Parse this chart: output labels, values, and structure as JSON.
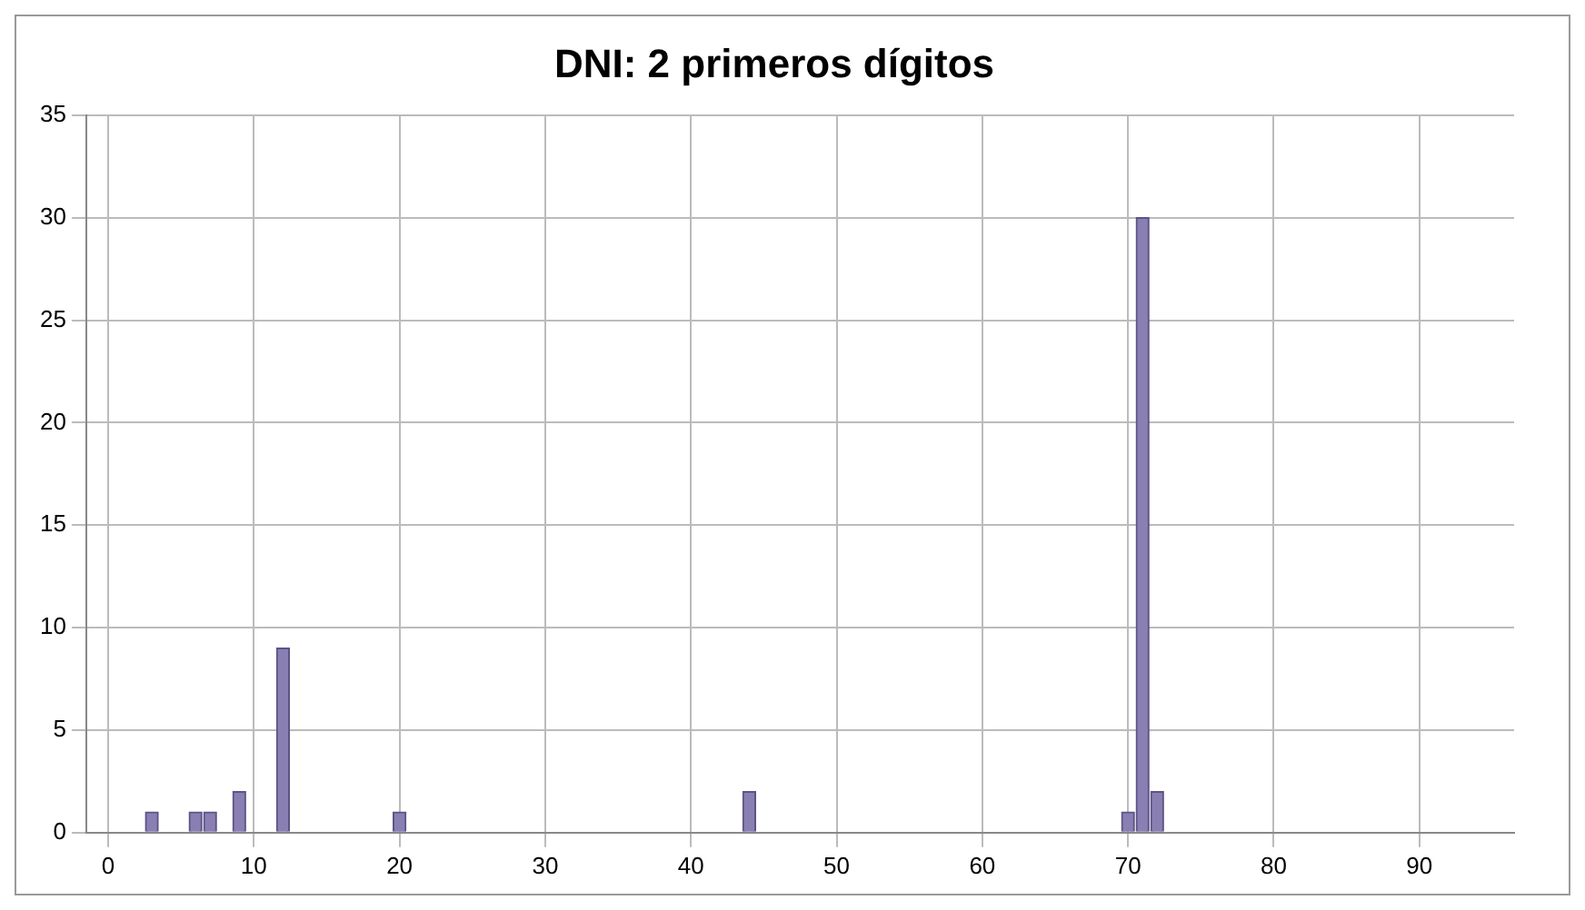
{
  "chart_data": {
    "type": "bar",
    "title": "DNI: 2 primeros dígitos",
    "x": [
      3,
      6,
      7,
      9,
      12,
      20,
      44,
      70,
      71,
      72
    ],
    "values": [
      1,
      1,
      1,
      2,
      9,
      1,
      2,
      1,
      30,
      2
    ],
    "color": "#8a7fb2",
    "xlim": [
      -1.5,
      96.5
    ],
    "xticks": [
      0,
      10,
      20,
      30,
      40,
      50,
      60,
      70,
      80,
      90
    ],
    "ylim": [
      0,
      35
    ],
    "yticks": [
      0,
      5,
      10,
      15,
      20,
      25,
      30,
      35
    ],
    "grid": true,
    "legend": false
  }
}
